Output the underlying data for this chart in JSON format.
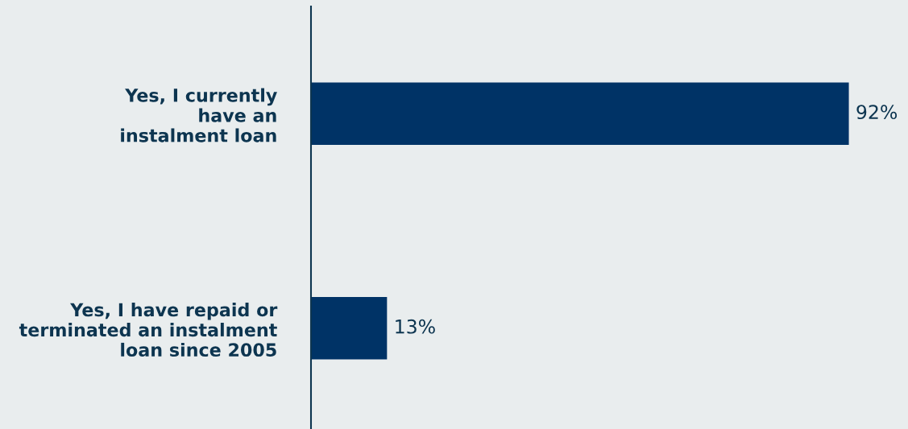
{
  "chart_data": {
    "type": "bar",
    "orientation": "horizontal",
    "categories": [
      "Yes, I currently\nhave an\ninstalment loan",
      "Yes, I have repaid or\nterminated an instalment\nloan since 2005"
    ],
    "values": [
      92,
      13
    ],
    "value_labels": [
      "92%",
      "13%"
    ],
    "color": "#003366"
  }
}
